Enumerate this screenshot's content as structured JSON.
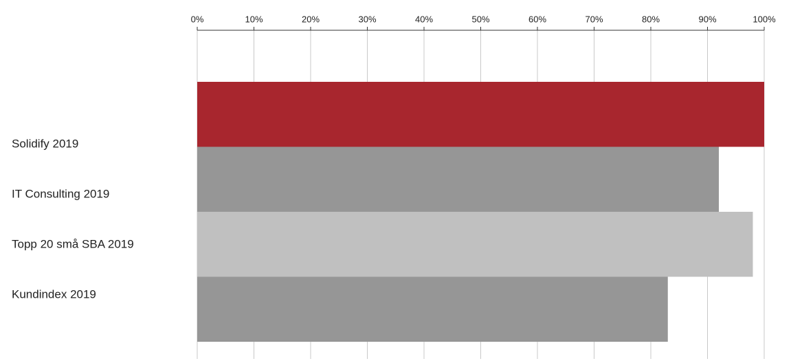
{
  "chart_data": {
    "type": "barh",
    "categories": [
      "Solidify 2019",
      "IT Consulting 2019",
      "Topp 20 små SBA 2019",
      "Kundindex 2019"
    ],
    "values": [
      100,
      92,
      98,
      83
    ],
    "colors": [
      "#a8262e",
      "#969696",
      "#c0c0c0",
      "#969696"
    ],
    "xlim": [
      0,
      100
    ],
    "xticks": [
      {
        "value": 0,
        "label": "0%"
      },
      {
        "value": 10,
        "label": "10%"
      },
      {
        "value": 20,
        "label": "20%"
      },
      {
        "value": 30,
        "label": "30%"
      },
      {
        "value": 40,
        "label": "40%"
      },
      {
        "value": 50,
        "label": "50%"
      },
      {
        "value": 60,
        "label": "60%"
      },
      {
        "value": 70,
        "label": "70%"
      },
      {
        "value": 80,
        "label": "80%"
      },
      {
        "value": 90,
        "label": "90%"
      },
      {
        "value": 100,
        "label": "100%"
      }
    ],
    "grid": true
  }
}
